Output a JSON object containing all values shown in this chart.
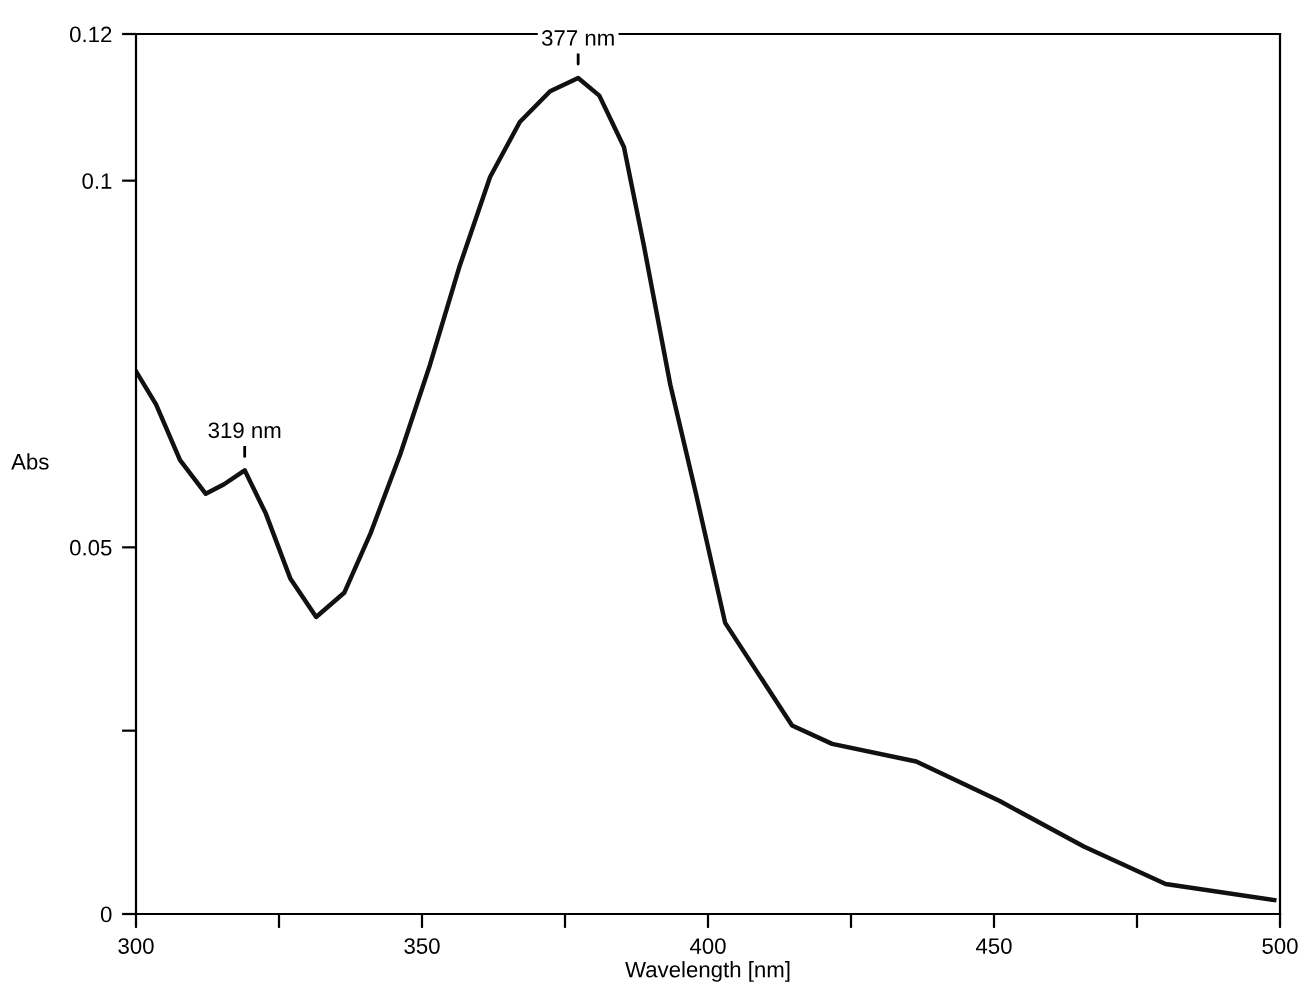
{
  "chart_data": {
    "type": "line",
    "xlabel": "Wavelength [nm]",
    "ylabel": "Abs",
    "x": [
      300,
      303.5,
      307.7,
      312.2,
      315.4,
      319,
      322.7,
      327,
      331.5,
      336.4,
      341,
      346.2,
      351.4,
      356.6,
      361.9,
      367.1,
      372.4,
      377.3,
      381,
      385.3,
      388.8,
      393.4,
      397.9,
      403,
      414.7,
      421.7,
      436.4,
      451,
      465.7,
      480,
      499
    ],
    "series": [
      {
        "color": "#111111",
        "values": [
          0.074,
          0.0695,
          0.0619,
          0.0573,
          0.0586,
          0.0605,
          0.0546,
          0.0457,
          0.0405,
          0.0438,
          0.0519,
          0.0627,
          0.0749,
          0.0884,
          0.1005,
          0.108,
          0.1122,
          0.114,
          0.1116,
          0.1046,
          0.0911,
          0.0722,
          0.0573,
          0.0397,
          0.0257,
          0.0232,
          0.0208,
          0.0154,
          0.0092,
          0.0041,
          0.0019
        ]
      }
    ],
    "annotations": [
      {
        "text": "377 nm",
        "x": 377.3,
        "y": 0.114
      },
      {
        "text": "319 nm",
        "x": 319,
        "y": 0.0605
      }
    ],
    "xlim": [
      300,
      500
    ],
    "ylim": [
      0,
      0.12
    ],
    "xticks": [
      300,
      {
        "value": 325,
        "label": null
      },
      350,
      {
        "value": 375,
        "label": null
      },
      400,
      {
        "value": 425,
        "label": null
      },
      450,
      {
        "value": 475,
        "label": null
      },
      500
    ],
    "yticks": [
      0,
      {
        "value": 0.025,
        "label": null
      },
      0.05,
      0.1,
      0.12
    ],
    "grid": false,
    "legend": false,
    "marker": "none",
    "line_style": "solid"
  }
}
